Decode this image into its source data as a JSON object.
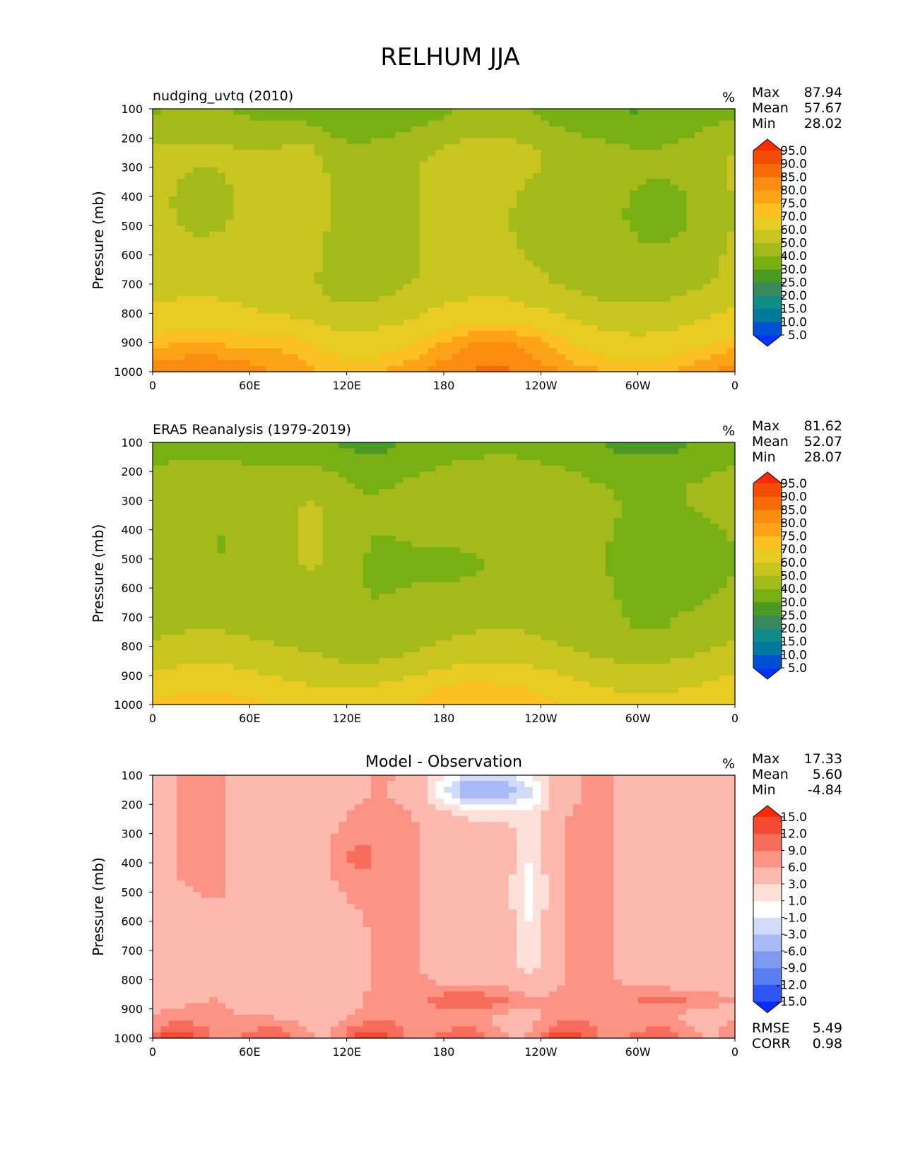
{
  "figure": {
    "title": "RELHUM JJA"
  },
  "chart_data": [
    {
      "type": "heatmap",
      "title": "nudging_uvtq (2010)",
      "units": "%",
      "ylabel": "Pressure (mb)",
      "xlabel": "",
      "x_ticks": [
        "0",
        "60E",
        "120E",
        "180",
        "120W",
        "60W",
        "0"
      ],
      "y_ticks": [
        "100",
        "200",
        "300",
        "400",
        "500",
        "600",
        "700",
        "800",
        "900",
        "1000"
      ],
      "ylim": [
        1000,
        100
      ],
      "xlim": [
        0,
        360
      ],
      "stats": {
        "max_label": "Max",
        "mean_label": "Mean",
        "min_label": "Min",
        "max": "87.94",
        "mean": "57.67",
        "min": "28.02"
      },
      "levels": [
        "5.0",
        "10.0",
        "15.0",
        "20.0",
        "25.0",
        "30.0",
        "40.0",
        "50.0",
        "60.0",
        "70.0",
        "75.0",
        "80.0",
        "85.0",
        "90.0",
        "95.0"
      ],
      "colors": [
        "#0033ff",
        "#0050d4",
        "#007a9c",
        "#118c88",
        "#3a8a5c",
        "#4a9a23",
        "#78b014",
        "#a3ba1a",
        "#c8c420",
        "#e8cc22",
        "#fdc022",
        "#fca318",
        "#fa8c10",
        "#f76a08",
        "#f44d06",
        "#ff2a00"
      ],
      "cbar_levels": [
        5,
        10,
        15,
        20,
        25,
        30,
        40,
        50,
        60,
        70,
        75,
        80,
        85,
        90,
        95
      ]
    },
    {
      "type": "heatmap",
      "title": "ERA5 Reanalysis (1979-2019)",
      "units": "%",
      "ylabel": "Pressure (mb)",
      "xlabel": "",
      "x_ticks": [
        "0",
        "60E",
        "120E",
        "180",
        "120W",
        "60W",
        "0"
      ],
      "y_ticks": [
        "100",
        "200",
        "300",
        "400",
        "500",
        "600",
        "700",
        "800",
        "900",
        "1000"
      ],
      "ylim": [
        1000,
        100
      ],
      "xlim": [
        0,
        360
      ],
      "stats": {
        "max_label": "Max",
        "mean_label": "Mean",
        "min_label": "Min",
        "max": "81.62",
        "mean": "52.07",
        "min": "28.07"
      },
      "levels": [
        "5.0",
        "10.0",
        "15.0",
        "20.0",
        "25.0",
        "30.0",
        "40.0",
        "50.0",
        "60.0",
        "70.0",
        "75.0",
        "80.0",
        "85.0",
        "90.0",
        "95.0"
      ],
      "colors": [
        "#0033ff",
        "#0050d4",
        "#007a9c",
        "#118c88",
        "#3a8a5c",
        "#4a9a23",
        "#78b014",
        "#a3ba1a",
        "#c8c420",
        "#e8cc22",
        "#fdc022",
        "#fca318",
        "#fa8c10",
        "#f76a08",
        "#f44d06",
        "#ff2a00"
      ],
      "cbar_levels": [
        5,
        10,
        15,
        20,
        25,
        30,
        40,
        50,
        60,
        70,
        75,
        80,
        85,
        90,
        95
      ]
    },
    {
      "type": "heatmap",
      "title": "Model - Observation",
      "units": "%",
      "ylabel": "Pressure (mb)",
      "xlabel": "",
      "x_ticks": [
        "0",
        "60E",
        "120E",
        "180",
        "120W",
        "60W",
        "0"
      ],
      "y_ticks": [
        "100",
        "200",
        "300",
        "400",
        "500",
        "600",
        "700",
        "800",
        "900",
        "1000"
      ],
      "ylim": [
        1000,
        100
      ],
      "xlim": [
        0,
        360
      ],
      "stats": {
        "max_label": "Max",
        "mean_label": "Mean",
        "min_label": "Min",
        "max": "17.33",
        "mean": "5.60",
        "min": "-4.84"
      },
      "levels": [
        "-15.0",
        "-12.0",
        "-9.0",
        "-6.0",
        "-3.0",
        "-1.0",
        "1.0",
        "3.0",
        "6.0",
        "9.0",
        "12.0",
        "15.0"
      ],
      "colors": [
        "#0a2cff",
        "#2f55f5",
        "#5a7ef2",
        "#8099f0",
        "#a9b9f5",
        "#d2dcfa",
        "#ffffff",
        "#fde0da",
        "#fdb9ad",
        "#fb9485",
        "#f86c5b",
        "#f44a33",
        "#ff2a00"
      ],
      "cbar_levels": [
        -15,
        -12,
        -9,
        -6,
        -3,
        -1,
        1,
        3,
        6,
        9,
        12,
        15
      ],
      "metrics": {
        "rmse_label": "RMSE",
        "rmse": "5.49",
        "corr_label": "CORR",
        "corr": "0.98"
      }
    }
  ]
}
